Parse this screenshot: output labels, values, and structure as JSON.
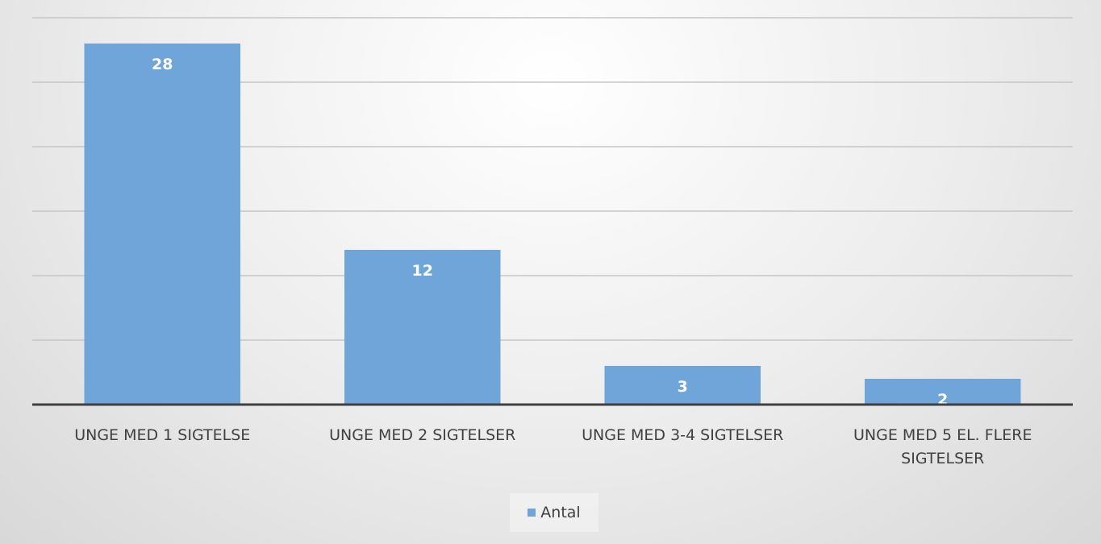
{
  "chart_data": {
    "type": "bar",
    "categories": [
      "UNGE MED 1 SIGTELSE",
      "UNGE MED 2 SIGTELSER",
      "UNGE MED 3-4 SIGTELSER",
      "UNGE MED 5 EL. FLERE SIGTELSER"
    ],
    "series": [
      {
        "name": "Antal",
        "color": "#6fa5d8",
        "values": [
          28,
          12,
          3,
          2
        ]
      }
    ],
    "ylim": [
      0,
      30
    ],
    "yticks": [
      0,
      5,
      10,
      15,
      20,
      25,
      30
    ],
    "grid": true,
    "legend": "bottom"
  }
}
